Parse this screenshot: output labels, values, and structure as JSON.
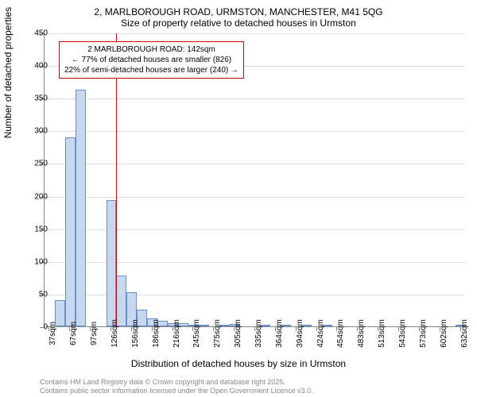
{
  "title": {
    "line1": "2, MARLBOROUGH ROAD, URMSTON, MANCHESTER, M41 5QG",
    "line2": "Size of property relative to detached houses in Urmston"
  },
  "chart": {
    "type": "histogram",
    "background_color": "#ffffff",
    "grid_color": "#dddddd",
    "axis_color": "#888888",
    "bar_fill": "#c6d9f0",
    "bar_border": "#6a8fc4",
    "marker_color": "#cc0000",
    "ylabel": "Number of detached properties",
    "xlabel": "Distribution of detached houses by size in Urmston",
    "ylim": [
      0,
      450
    ],
    "ytick_step": 50,
    "yticks": [
      0,
      50,
      100,
      150,
      200,
      250,
      300,
      350,
      400,
      450
    ],
    "xtick_labels": [
      "37sqm",
      "67sqm",
      "97sqm",
      "126sqm",
      "156sqm",
      "186sqm",
      "216sqm",
      "245sqm",
      "275sqm",
      "305sqm",
      "335sqm",
      "364sqm",
      "394sqm",
      "424sqm",
      "454sqm",
      "483sqm",
      "513sqm",
      "543sqm",
      "573sqm",
      "602sqm",
      "632sqm"
    ],
    "bars": [
      {
        "x_label": "37sqm",
        "value": 0
      },
      {
        "x_label": "52sqm",
        "value": 40
      },
      {
        "x_label": "67sqm",
        "value": 290
      },
      {
        "x_label": "82sqm",
        "value": 362
      },
      {
        "x_label": "97sqm",
        "value": 0
      },
      {
        "x_label": "112sqm",
        "value": 0
      },
      {
        "x_label": "126sqm",
        "value": 193
      },
      {
        "x_label": "141sqm",
        "value": 78
      },
      {
        "x_label": "156sqm",
        "value": 52
      },
      {
        "x_label": "171sqm",
        "value": 25
      },
      {
        "x_label": "186sqm",
        "value": 12
      },
      {
        "x_label": "201sqm",
        "value": 8
      },
      {
        "x_label": "216sqm",
        "value": 5
      },
      {
        "x_label": "231sqm",
        "value": 5
      },
      {
        "x_label": "245sqm",
        "value": 2
      },
      {
        "x_label": "260sqm",
        "value": 3
      },
      {
        "x_label": "275sqm",
        "value": 0
      },
      {
        "x_label": "290sqm",
        "value": 2
      },
      {
        "x_label": "305sqm",
        "value": 4
      },
      {
        "x_label": "320sqm",
        "value": 0
      },
      {
        "x_label": "335sqm",
        "value": 0
      },
      {
        "x_label": "350sqm",
        "value": 2
      },
      {
        "x_label": "364sqm",
        "value": 0
      },
      {
        "x_label": "379sqm",
        "value": 3
      },
      {
        "x_label": "394sqm",
        "value": 0
      },
      {
        "x_label": "409sqm",
        "value": 2
      },
      {
        "x_label": "424sqm",
        "value": 0
      },
      {
        "x_label": "439sqm",
        "value": 1
      },
      {
        "x_label": "454sqm",
        "value": 0
      },
      {
        "x_label": "469sqm",
        "value": 0
      },
      {
        "x_label": "483sqm",
        "value": 0
      },
      {
        "x_label": "498sqm",
        "value": 0
      },
      {
        "x_label": "513sqm",
        "value": 0
      },
      {
        "x_label": "528sqm",
        "value": 0
      },
      {
        "x_label": "543sqm",
        "value": 0
      },
      {
        "x_label": "558sqm",
        "value": 0
      },
      {
        "x_label": "573sqm",
        "value": 0
      },
      {
        "x_label": "588sqm",
        "value": 0
      },
      {
        "x_label": "602sqm",
        "value": 0
      },
      {
        "x_label": "617sqm",
        "value": 0
      },
      {
        "x_label": "632sqm",
        "value": 1
      }
    ],
    "marker_bar_index": 6,
    "annotation": {
      "line1": "2 MARLBOROUGH ROAD: 142sqm",
      "line2": "← 77% of detached houses are smaller (826)",
      "line3": "22% of semi-detached houses are larger (240) →"
    },
    "title_fontsize": 12,
    "label_fontsize": 12,
    "tick_fontsize": 10,
    "annotation_fontsize": 10
  },
  "footer": {
    "line1": "Contains HM Land Registry data © Crown copyright and database right 2025.",
    "line2": "Contains public sector information licensed under the Open Government Licence v3.0."
  }
}
